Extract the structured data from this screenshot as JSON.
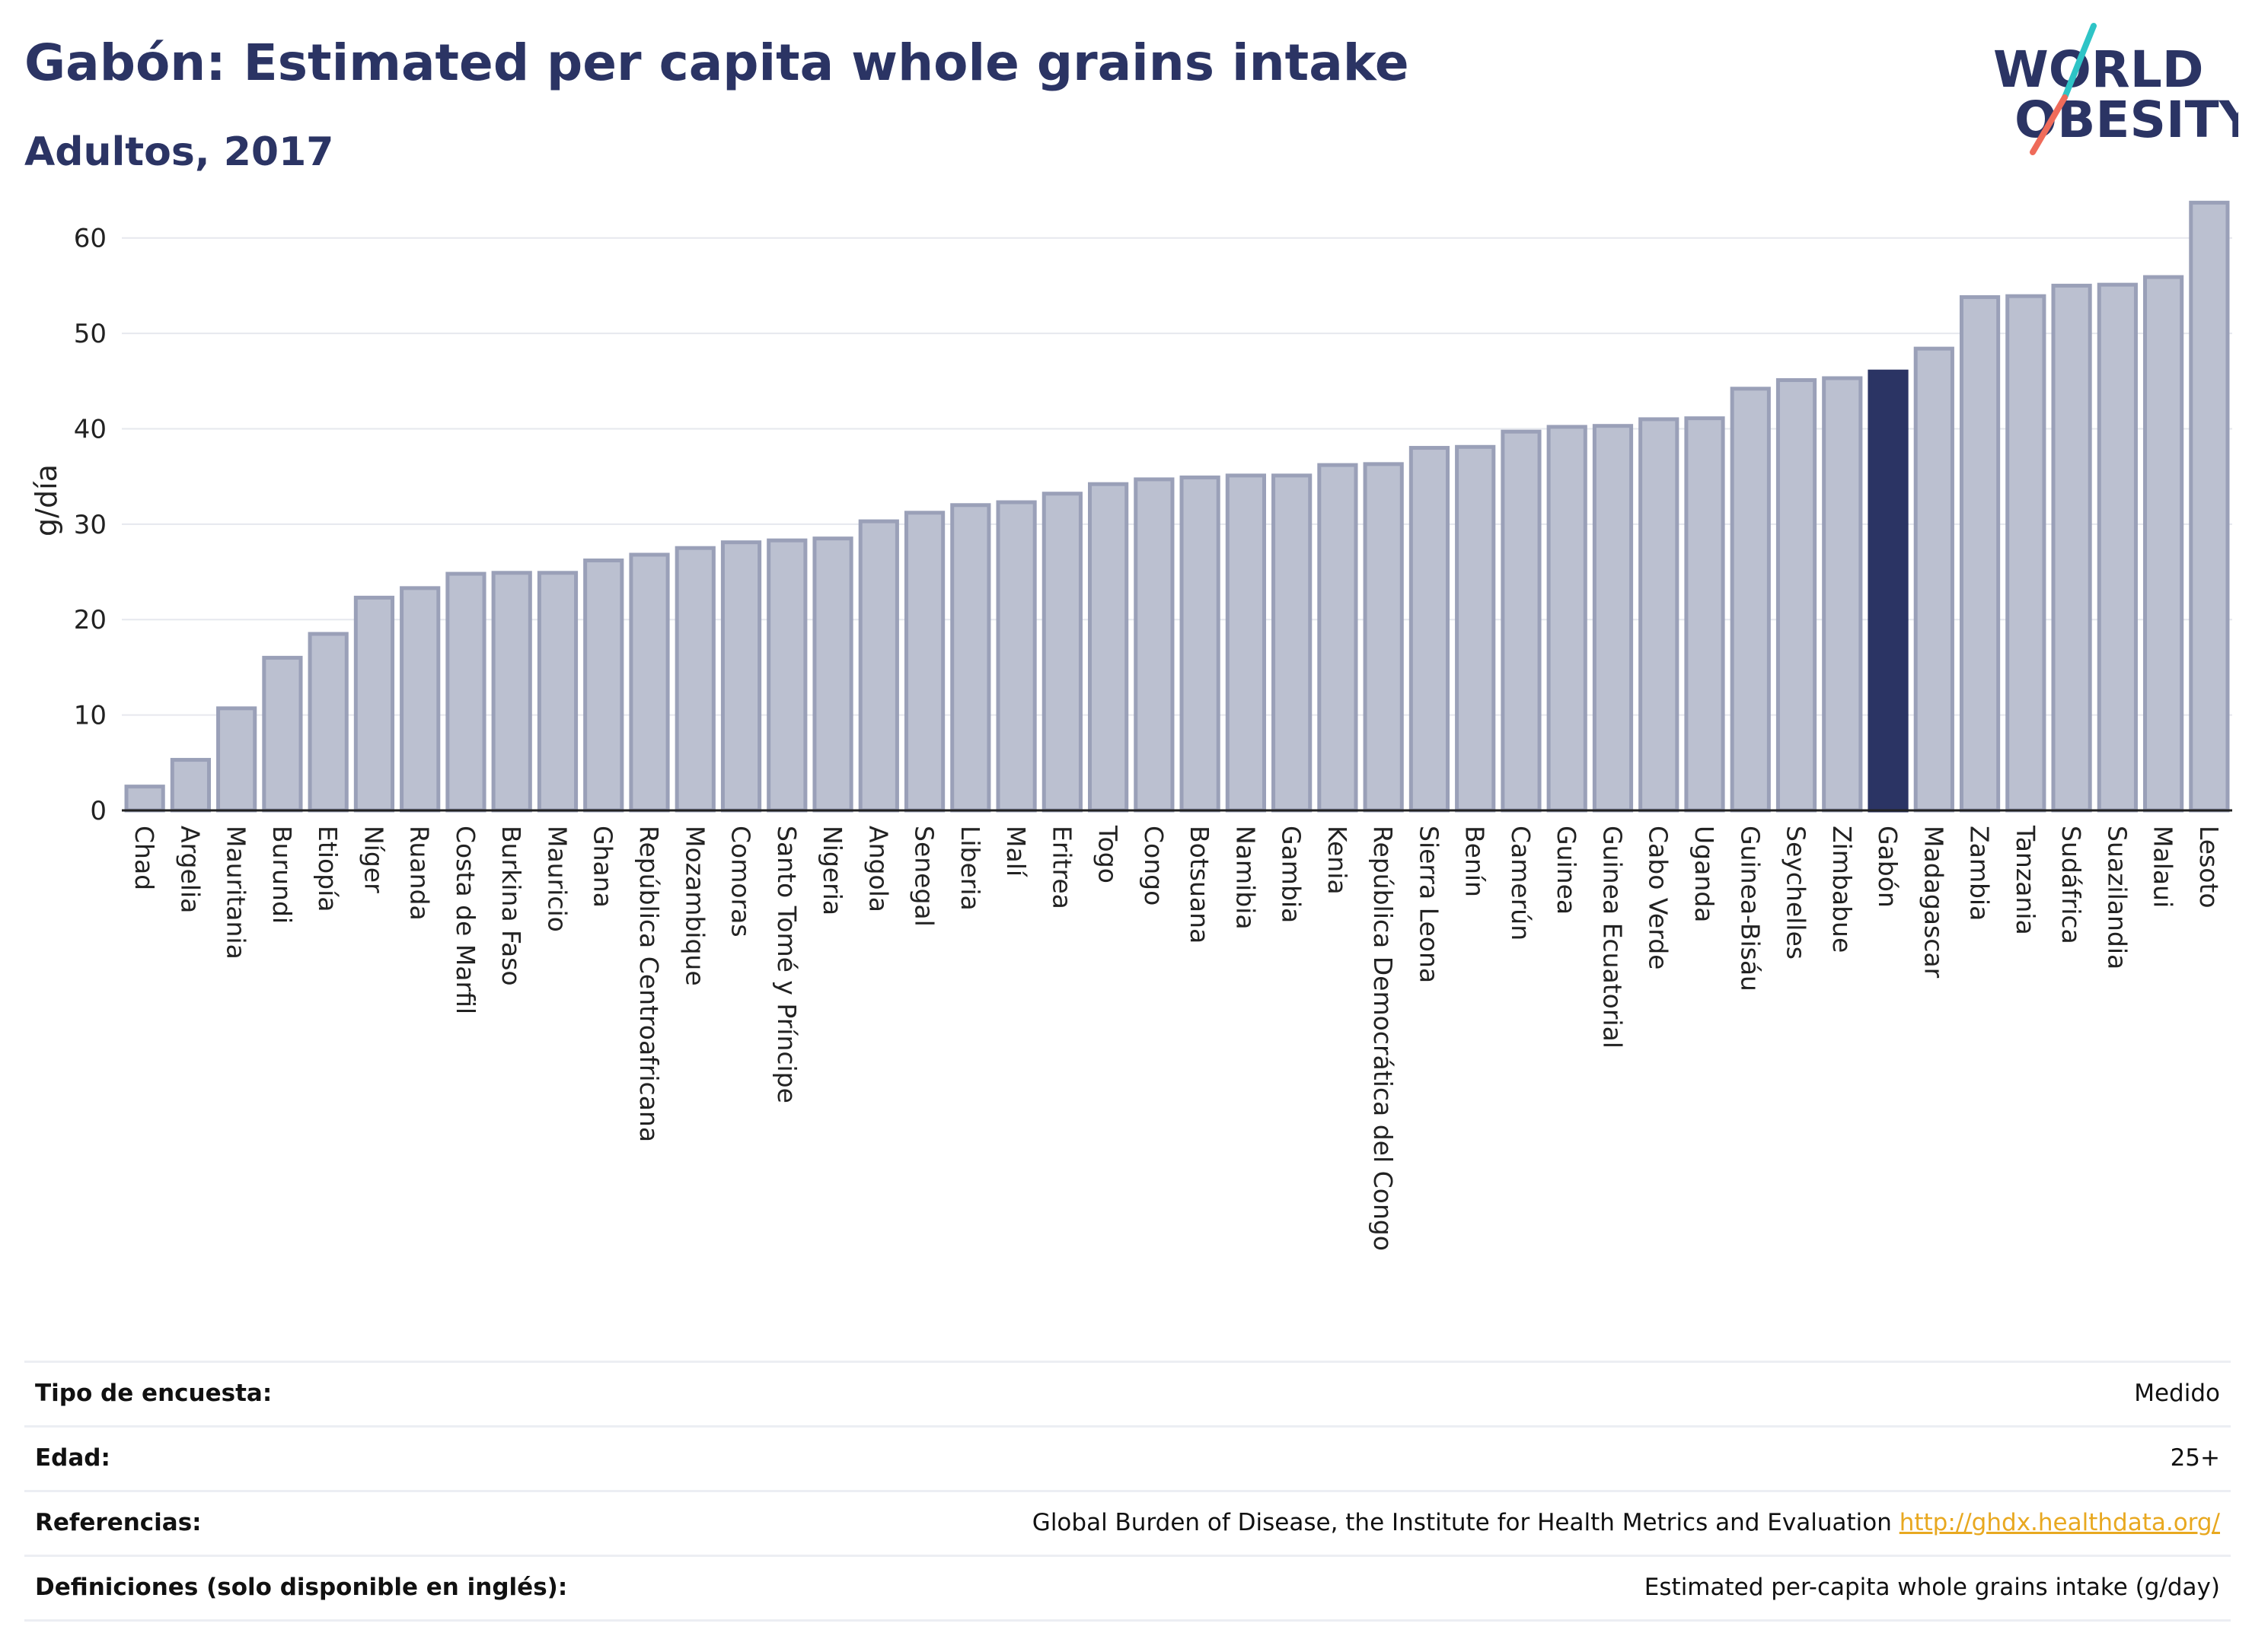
{
  "header": {
    "title": "Gabón: Estimated per capita whole grains intake",
    "subtitle": "Adultos, 2017"
  },
  "logo": {
    "line1": "WORLD",
    "line2": "OBESITY"
  },
  "colors": {
    "bar": "#bbc0d0",
    "bar_stroke": "#9aa0b8",
    "highlight": "#2b3464",
    "grid": "#e6e8ee",
    "logo_teal": "#2ec4c6",
    "logo_coral": "#ef6b5a"
  },
  "chart_data": {
    "type": "bar",
    "ylabel": "g/día",
    "ylim": [
      0,
      65
    ],
    "yticks": [
      0,
      10,
      20,
      30,
      40,
      50,
      60
    ],
    "grid": true,
    "highlight": "Gabón",
    "categories": [
      "Chad",
      "Argelia",
      "Mauritania",
      "Burundi",
      "Etiopía",
      "Níger",
      "Ruanda",
      "Costa de Marfil",
      "Burkina Faso",
      "Mauricio",
      "Ghana",
      "República Centroafricana",
      "Mozambique",
      "Comoras",
      "Santo Tomé y Príncipe",
      "Nigeria",
      "Angola",
      "Senegal",
      "Liberia",
      "Malí",
      "Eritrea",
      "Togo",
      "Congo",
      "Botsuana",
      "Namibia",
      "Gambia",
      "Kenia",
      "República Democrática del Congo",
      "Sierra Leona",
      "Benín",
      "Camerún",
      "Guinea",
      "Guinea Ecuatorial",
      "Cabo Verde",
      "Uganda",
      "Guinea-Bisáu",
      "Seychelles",
      "Zimbabue",
      "Gabón",
      "Madagascar",
      "Zambia",
      "Tanzania",
      "Sudáfrica",
      "Suazilandia",
      "Malaui",
      "Lesoto"
    ],
    "values": [
      2.5,
      5.3,
      10.7,
      16.0,
      18.5,
      22.3,
      23.3,
      24.8,
      24.9,
      24.9,
      26.2,
      26.8,
      27.5,
      28.1,
      28.3,
      28.5,
      30.3,
      31.2,
      32.0,
      32.3,
      33.2,
      34.2,
      34.7,
      34.9,
      35.1,
      35.1,
      36.2,
      36.3,
      38.0,
      38.1,
      39.7,
      40.2,
      40.3,
      41.0,
      41.1,
      44.2,
      45.1,
      45.3,
      46.0,
      48.4,
      53.8,
      53.9,
      55.0,
      55.1,
      55.9,
      63.7
    ]
  },
  "info": {
    "survey_type_label": "Tipo de encuesta:",
    "survey_type_value": "Medido",
    "age_label": "Edad:",
    "age_value": "25+",
    "references_label": "Referencias:",
    "references_text": "Global Burden of Disease, the Institute for Health Metrics and Evaluation",
    "references_link": "http://ghdx.healthdata.org/",
    "definitions_label": "Definiciones (solo disponible en inglés):",
    "definitions_value": "Estimated per-capita whole grains intake (g/day)"
  }
}
